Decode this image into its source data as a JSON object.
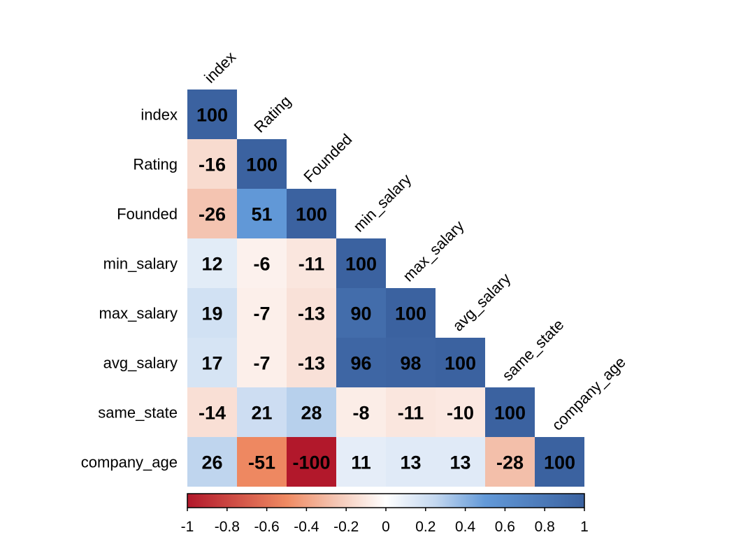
{
  "chart_data": {
    "type": "heatmap",
    "subtype": "correlation-lower-triangle",
    "variables": [
      "index",
      "Rating",
      "Founded",
      "min_salary",
      "max_salary",
      "avg_salary",
      "same_state",
      "company_age"
    ],
    "matrix": [
      [
        100
      ],
      [
        -16,
        100
      ],
      [
        -26,
        51,
        100
      ],
      [
        12,
        -6,
        -11,
        100
      ],
      [
        19,
        -7,
        -13,
        90,
        100
      ],
      [
        17,
        -7,
        -13,
        96,
        98,
        100
      ],
      [
        -14,
        21,
        28,
        -8,
        -11,
        -10,
        100
      ],
      [
        26,
        -51,
        -100,
        11,
        13,
        13,
        -28,
        100
      ]
    ],
    "color_scale": {
      "range": [
        -1,
        1
      ],
      "ticks": [
        "-1",
        "-0.8",
        "-0.6",
        "-0.4",
        "-0.2",
        "0",
        "0.2",
        "0.4",
        "0.6",
        "0.8",
        "1"
      ],
      "stops": [
        {
          "value": -1.0,
          "color": "#b2182b"
        },
        {
          "value": -0.5,
          "color": "#ef8a62"
        },
        {
          "value": -0.25,
          "color": "#f4c6b4"
        },
        {
          "value": 0.0,
          "color": "#ffffff"
        },
        {
          "value": 0.25,
          "color": "#c3d7ef"
        },
        {
          "value": 0.5,
          "color": "#6299d8"
        },
        {
          "value": 1.0,
          "color": "#3b62a0"
        }
      ],
      "legend_position": "bottom"
    }
  }
}
